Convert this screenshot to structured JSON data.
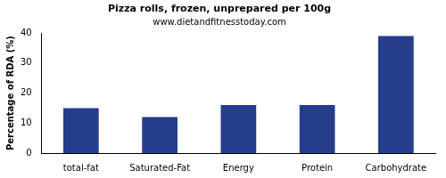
{
  "chart_data": {
    "type": "bar",
    "title": "Pizza rolls, frozen, unprepared per 100g",
    "subtitle": "www.dietandfitnesstoday.com",
    "y_label": "Percentage of RDA (%)",
    "categories": [
      "total-fat",
      "Saturated-Fat",
      "Energy",
      "Protein",
      "Carbohydrate"
    ],
    "values": [
      15,
      12,
      16,
      16,
      39
    ],
    "color": "#263d8c",
    "ylim": [
      0,
      40
    ],
    "yticks": [
      0,
      10,
      20,
      30,
      40
    ],
    "grid": false
  }
}
